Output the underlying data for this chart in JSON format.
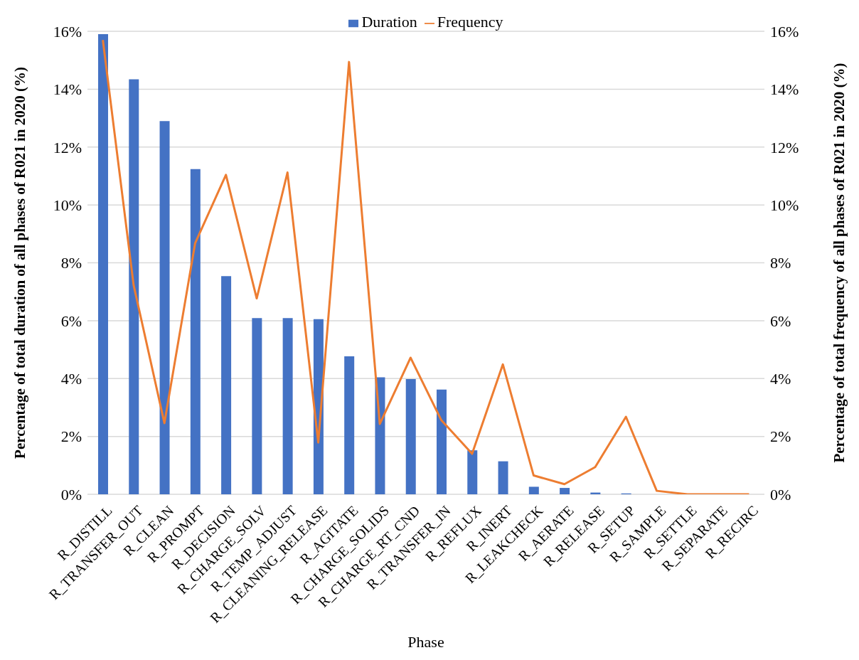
{
  "chart_data": {
    "type": "bar",
    "xlabel": "Phase",
    "ylabel": "Percentage of total duration of all phases of R021 in 2020 (%)",
    "y2label": "Percentage of total frequency of all phases of  R021 in 2020 (%)",
    "categories": [
      "R_DISTILL",
      "R_TRANSFER_OUT",
      "R_CLEAN",
      "R_PROMPT",
      "R_DECISION",
      "R_CHARGE_SOLV",
      "R_TEMP_ADJUST",
      "R_CLEANING_RELEASE",
      "R_AGITATE",
      "R_CHARGE_SOLIDS",
      "R_CHARGE_RT_CND",
      "R_TRANSFER_IN",
      "R_REFLUX",
      "R_INERT",
      "R_LEAKCHECK",
      "R_AERATE",
      "R_RELEASE",
      "R_SETUP",
      "R_SAMPLE",
      "R_SETTLE",
      "R_SEPARATE",
      "R_RECIRC"
    ],
    "series": [
      {
        "name": "Duration",
        "color": "#4472c4",
        "values": [
          15.9,
          14.34,
          12.9,
          11.24,
          7.54,
          6.09,
          6.09,
          6.05,
          4.77,
          4.04,
          3.98,
          3.62,
          1.52,
          1.14,
          0.26,
          0.22,
          0.06,
          0.03,
          0,
          0,
          0,
          0
        ]
      },
      {
        "name": "Frequency",
        "type": "line",
        "axis": "y2",
        "color": "#ed7d31",
        "values": [
          15.7,
          7.23,
          2.46,
          8.68,
          11.04,
          6.77,
          11.12,
          1.79,
          14.94,
          2.43,
          4.72,
          2.56,
          1.4,
          4.49,
          0.65,
          0.35,
          0.94,
          2.68,
          0.12,
          0,
          0,
          0
        ]
      }
    ],
    "ylim": [
      0,
      16
    ],
    "yticks": [
      {
        "value": 0,
        "label": "0%"
      },
      {
        "value": 2,
        "label": "2%"
      },
      {
        "value": 4,
        "label": "4%"
      },
      {
        "value": 6,
        "label": "6%"
      },
      {
        "value": 8,
        "label": "8%"
      },
      {
        "value": 10,
        "label": "10%"
      },
      {
        "value": 12,
        "label": "12%"
      },
      {
        "value": 14,
        "label": "14%"
      },
      {
        "value": 16,
        "label": "16%"
      }
    ],
    "y2lim": [
      0,
      16
    ],
    "y2ticks": [
      {
        "value": 0,
        "label": "0%"
      },
      {
        "value": 2,
        "label": "2%"
      },
      {
        "value": 4,
        "label": "4%"
      },
      {
        "value": 6,
        "label": "6%"
      },
      {
        "value": 8,
        "label": "8%"
      },
      {
        "value": 10,
        "label": "10%"
      },
      {
        "value": 12,
        "label": "12%"
      },
      {
        "value": 14,
        "label": "14%"
      },
      {
        "value": 16,
        "label": "16%"
      }
    ],
    "grid": "y",
    "legend": "top",
    "line_style": "solid"
  }
}
